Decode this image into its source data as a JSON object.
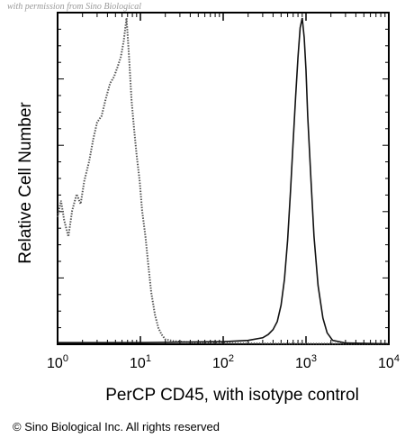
{
  "watermark": "with permission from Sino Biological",
  "copyright": "© Sino Biological Inc. All rights reserved",
  "chart_data": {
    "type": "line",
    "title": "",
    "xlabel": "PerCP CD45, with isotype control",
    "ylabel": "Relative Cell Number",
    "x_scale": "log",
    "xlim": [
      1,
      10000
    ],
    "ylim": [
      0,
      1
    ],
    "x_ticks": [
      {
        "base": "10",
        "exp": "0",
        "value": 1
      },
      {
        "base": "10",
        "exp": "1",
        "value": 10
      },
      {
        "base": "10",
        "exp": "2",
        "value": 100
      },
      {
        "base": "10",
        "exp": "3",
        "value": 1000
      },
      {
        "base": "10",
        "exp": "4",
        "value": 10000
      }
    ],
    "grid": false,
    "legend": "none",
    "series": [
      {
        "style": "dotted",
        "color": "#555555",
        "x": [
          1,
          1.1,
          1.2,
          1.35,
          1.5,
          1.7,
          1.9,
          2.1,
          2.4,
          2.7,
          3.0,
          3.4,
          3.8,
          4.3,
          4.8,
          5.3,
          5.8,
          6.3,
          6.8,
          7.3,
          7.8,
          8.4,
          9.0,
          9.8,
          10.5,
          11.5,
          12.5,
          13.5,
          15,
          16.5,
          18,
          20,
          25,
          30,
          40,
          60,
          100,
          200,
          500,
          1000,
          10000
        ],
        "y": [
          0.39,
          0.44,
          0.38,
          0.33,
          0.41,
          0.46,
          0.43,
          0.5,
          0.56,
          0.63,
          0.68,
          0.7,
          0.75,
          0.8,
          0.82,
          0.85,
          0.88,
          0.93,
          1.0,
          0.88,
          0.75,
          0.66,
          0.58,
          0.5,
          0.41,
          0.33,
          0.24,
          0.16,
          0.09,
          0.05,
          0.03,
          0.015,
          0.01,
          0.008,
          0.006,
          0.005,
          0.004,
          0.003,
          0.002,
          0.002,
          0.001
        ]
      },
      {
        "style": "solid",
        "color": "#111111",
        "x": [
          1,
          10,
          100,
          200,
          300,
          350,
          400,
          450,
          500,
          550,
          600,
          650,
          700,
          750,
          800,
          850,
          900,
          950,
          1000,
          1050,
          1150,
          1250,
          1400,
          1600,
          1800,
          2100,
          3000,
          10000
        ],
        "y": [
          0.005,
          0.005,
          0.008,
          0.012,
          0.02,
          0.03,
          0.045,
          0.07,
          0.12,
          0.2,
          0.32,
          0.47,
          0.62,
          0.76,
          0.88,
          0.97,
          1.0,
          0.94,
          0.84,
          0.7,
          0.5,
          0.33,
          0.18,
          0.08,
          0.035,
          0.012,
          0.004,
          0.001
        ]
      }
    ]
  }
}
